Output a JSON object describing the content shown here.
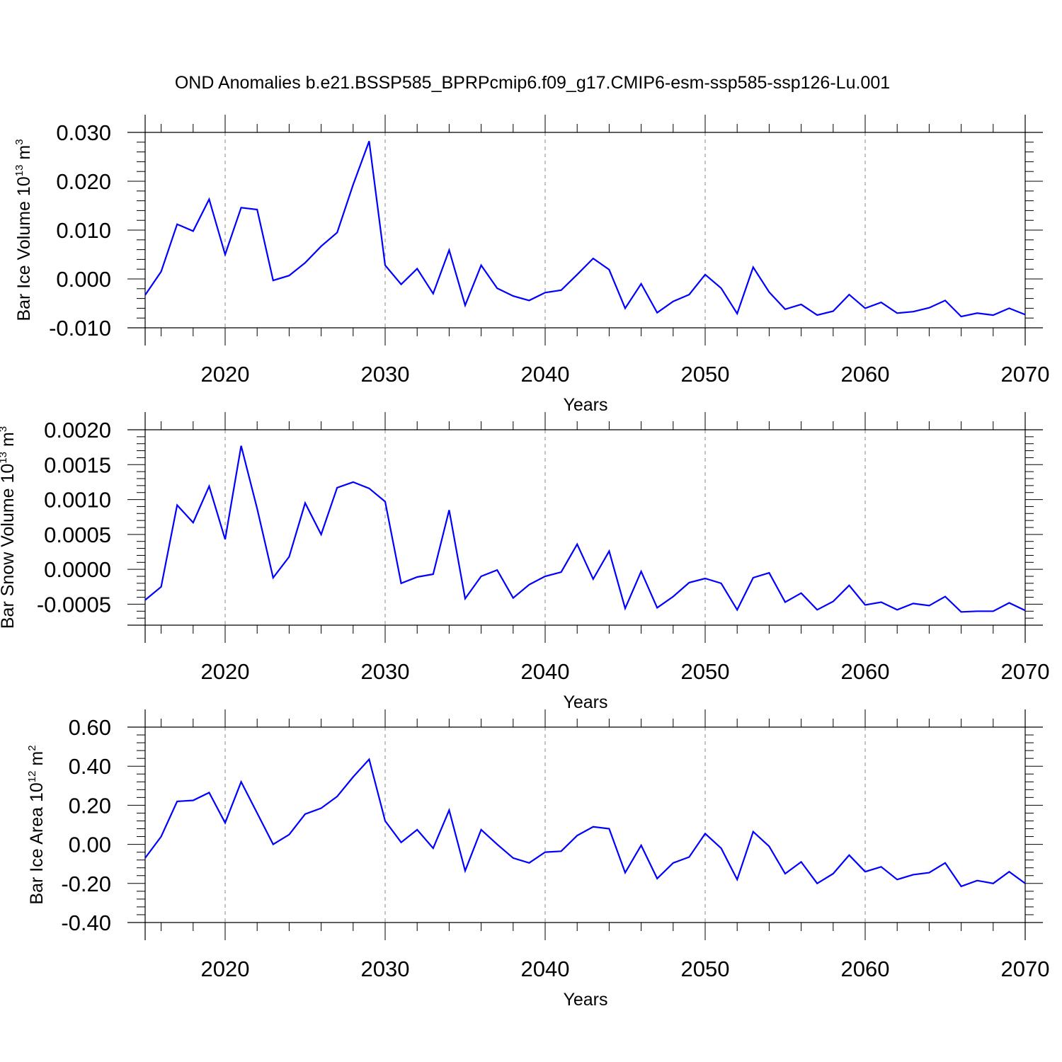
{
  "figure_title": "OND Anomalies b.e21.BSSP585_BPRPcmip6.f09_g17.CMIP6-esm-ssp585-ssp126-Lu.001",
  "colors": {
    "series": "#0000ff",
    "axes": "#000000",
    "grid": "#888888"
  },
  "chart_data": [
    {
      "type": "line",
      "title": "OND Anomalies b.e21.BSSP585_BPRPcmip6.f09_g17.CMIP6-esm-ssp585-ssp126-Lu.001",
      "xlabel": "Years",
      "ylabel": {
        "text": "Bar Ice Volume 10",
        "sup1": "13",
        "unit": " m",
        "sup2": "3"
      },
      "xlim": [
        2015,
        2070
      ],
      "ylim": [
        -0.01,
        0.03
      ],
      "xticks": [
        "2020",
        "2030",
        "2040",
        "2050",
        "2060",
        "2070"
      ],
      "yticks": [
        "-0.010",
        "0.000",
        "0.010",
        "0.020",
        "0.030"
      ],
      "ytick_values": [
        -0.01,
        0.0,
        0.01,
        0.02,
        0.03
      ],
      "grid": "x-dashed",
      "x": [
        2015,
        2016,
        2017,
        2018,
        2019,
        2020,
        2021,
        2022,
        2023,
        2024,
        2025,
        2026,
        2027,
        2028,
        2029,
        2030,
        2031,
        2032,
        2033,
        2034,
        2035,
        2036,
        2037,
        2038,
        2039,
        2040,
        2041,
        2042,
        2043,
        2044,
        2045,
        2046,
        2047,
        2048,
        2049,
        2050,
        2051,
        2052,
        2053,
        2054,
        2055,
        2056,
        2057,
        2058,
        2059,
        2060,
        2061,
        2062,
        2063,
        2064,
        2065,
        2066,
        2067,
        2068,
        2069,
        2070
      ],
      "values": [
        -0.0033,
        0.0015,
        0.0112,
        0.0098,
        0.0163,
        0.005,
        0.0146,
        0.0142,
        -0.0003,
        0.0007,
        0.0033,
        0.0067,
        0.0095,
        0.0193,
        0.0282,
        0.0028,
        -0.0011,
        0.0021,
        -0.003,
        0.0059,
        -0.0054,
        0.0028,
        -0.0019,
        -0.0035,
        -0.0044,
        -0.0028,
        -0.0023,
        0.0009,
        0.0042,
        0.0019,
        -0.006,
        -0.001,
        -0.0069,
        -0.0046,
        -0.0032,
        0.0009,
        -0.0019,
        -0.0071,
        0.0024,
        -0.0027,
        -0.0062,
        -0.0052,
        -0.0074,
        -0.0066,
        -0.0032,
        -0.006,
        -0.0048,
        -0.007,
        -0.0067,
        -0.0059,
        -0.0044,
        -0.0077,
        -0.007,
        -0.0074,
        -0.006,
        -0.0073
      ]
    },
    {
      "type": "line",
      "xlabel": "Years",
      "ylabel": {
        "text": "Bar Snow Volume 10",
        "sup1": "13",
        "unit": " m",
        "sup2": "3"
      },
      "xlim": [
        2015,
        2070
      ],
      "ylim": [
        -0.0008,
        0.002
      ],
      "xticks": [
        "2020",
        "2030",
        "2040",
        "2050",
        "2060",
        "2070"
      ],
      "yticks": [
        "-0.0005",
        "0.0000",
        "0.0005",
        "0.0010",
        "0.0015",
        "0.0020"
      ],
      "ytick_values": [
        -0.0005,
        0.0,
        0.0005,
        0.001,
        0.0015,
        0.002
      ],
      "grid": "x-dashed",
      "x": [
        2015,
        2016,
        2017,
        2018,
        2019,
        2020,
        2021,
        2022,
        2023,
        2024,
        2025,
        2026,
        2027,
        2028,
        2029,
        2030,
        2031,
        2032,
        2033,
        2034,
        2035,
        2036,
        2037,
        2038,
        2039,
        2040,
        2041,
        2042,
        2043,
        2044,
        2045,
        2046,
        2047,
        2048,
        2049,
        2050,
        2051,
        2052,
        2053,
        2054,
        2055,
        2056,
        2057,
        2058,
        2059,
        2060,
        2061,
        2062,
        2063,
        2064,
        2065,
        2066,
        2067,
        2068,
        2069,
        2070
      ],
      "values": [
        -0.00044,
        -0.00025,
        0.00092,
        0.00067,
        0.00119,
        0.00043,
        0.00177,
        0.00087,
        -0.00012,
        0.00018,
        0.00095,
        0.0005,
        0.00117,
        0.00125,
        0.00116,
        0.00097,
        -0.0002,
        -0.00011,
        -7e-05,
        0.00085,
        -0.00042,
        -0.0001,
        -1e-05,
        -0.00041,
        -0.00022,
        -0.0001,
        -4e-05,
        0.00036,
        -0.00014,
        0.00026,
        -0.00056,
        -3e-05,
        -0.00055,
        -0.00039,
        -0.00019,
        -0.00013,
        -0.0002,
        -0.00058,
        -0.00012,
        -5e-05,
        -0.00047,
        -0.00034,
        -0.00058,
        -0.00046,
        -0.00023,
        -0.00051,
        -0.00047,
        -0.00058,
        -0.00049,
        -0.00052,
        -0.00039,
        -0.00061,
        -0.0006,
        -0.0006,
        -0.00048,
        -0.00059
      ]
    },
    {
      "type": "line",
      "xlabel": "Years",
      "ylabel": {
        "text": "Bar Ice Area 10",
        "sup1": "12",
        "unit": " m",
        "sup2": "2"
      },
      "xlim": [
        2015,
        2070
      ],
      "ylim": [
        -0.4,
        0.6
      ],
      "xticks": [
        "2020",
        "2030",
        "2040",
        "2050",
        "2060",
        "2070"
      ],
      "yticks": [
        "-0.40",
        "-0.20",
        "0.00",
        "0.20",
        "0.40",
        "0.60"
      ],
      "ytick_values": [
        -0.4,
        -0.2,
        0.0,
        0.2,
        0.4,
        0.6
      ],
      "grid": "x-dashed",
      "x": [
        2015,
        2016,
        2017,
        2018,
        2019,
        2020,
        2021,
        2022,
        2023,
        2024,
        2025,
        2026,
        2027,
        2028,
        2029,
        2030,
        2031,
        2032,
        2033,
        2034,
        2035,
        2036,
        2037,
        2038,
        2039,
        2040,
        2041,
        2042,
        2043,
        2044,
        2045,
        2046,
        2047,
        2048,
        2049,
        2050,
        2051,
        2052,
        2053,
        2054,
        2055,
        2056,
        2057,
        2058,
        2059,
        2060,
        2061,
        2062,
        2063,
        2064,
        2065,
        2066,
        2067,
        2068,
        2069,
        2070
      ],
      "values": [
        -0.07,
        0.04,
        0.22,
        0.225,
        0.265,
        0.11,
        0.32,
        0.16,
        0.0,
        0.05,
        0.155,
        0.185,
        0.245,
        0.345,
        0.435,
        0.12,
        0.01,
        0.075,
        -0.02,
        0.175,
        -0.135,
        0.075,
        0.0,
        -0.07,
        -0.095,
        -0.04,
        -0.035,
        0.045,
        0.09,
        0.08,
        -0.145,
        -0.005,
        -0.175,
        -0.095,
        -0.065,
        0.055,
        -0.02,
        -0.18,
        0.065,
        -0.01,
        -0.15,
        -0.09,
        -0.2,
        -0.15,
        -0.055,
        -0.14,
        -0.115,
        -0.18,
        -0.155,
        -0.145,
        -0.095,
        -0.215,
        -0.185,
        -0.2,
        -0.14,
        -0.2
      ]
    }
  ]
}
